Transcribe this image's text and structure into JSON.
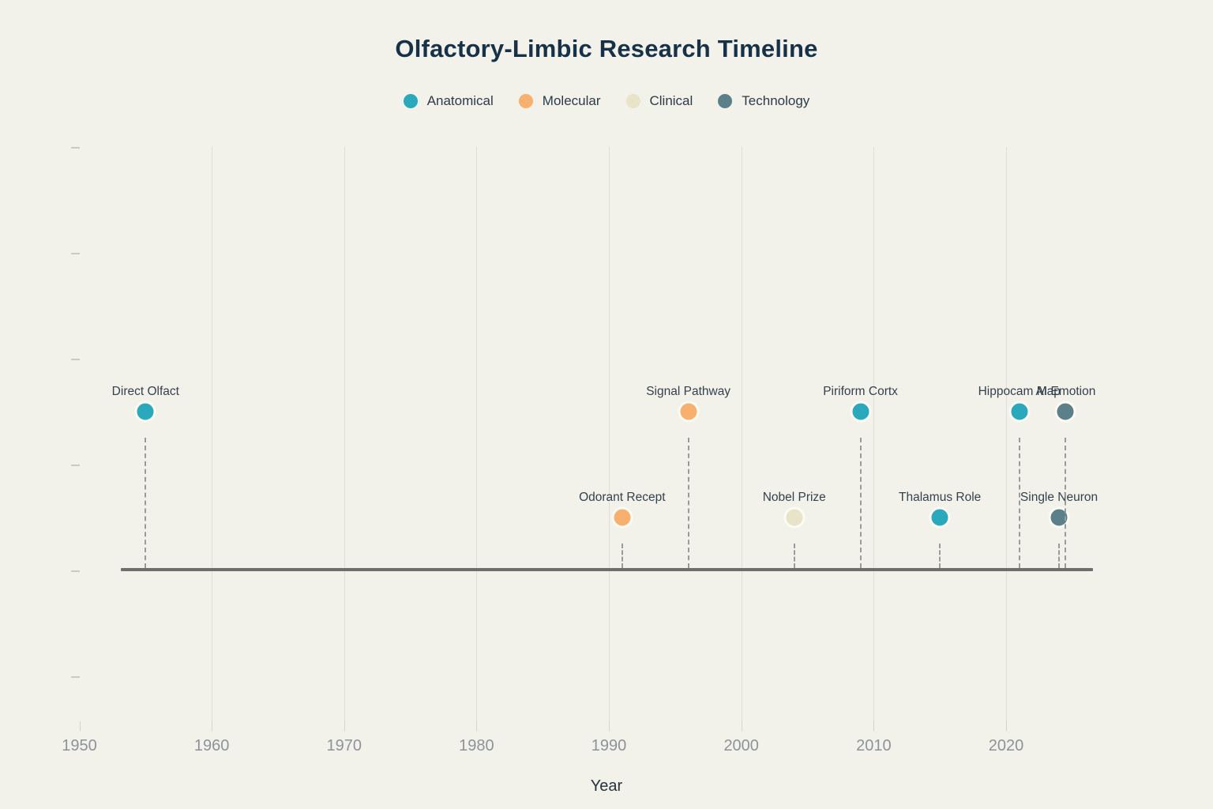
{
  "page": {
    "background_color": "#f2f1ea"
  },
  "chart_data": {
    "type": "scatter",
    "subtype": "event-timeline",
    "title": "Olfactory-Limbic Research Timeline",
    "xlabel": "Year",
    "ylabel": "",
    "x_tick_labels": [
      "1950",
      "1960",
      "1970",
      "1980",
      "1990",
      "2000",
      "2010",
      "2020"
    ],
    "x_tick_years": [
      1950,
      1960,
      1970,
      1980,
      1990,
      2000,
      2010,
      2020
    ],
    "xlim": [
      1950,
      2027
    ],
    "grid": "vertical decade gridlines, no horizontal gridlines, unlabeled y ticks",
    "legend_position": "top-center",
    "legend": [
      {
        "label": "Anatomical",
        "color": "#2aa9bd"
      },
      {
        "label": "Molecular",
        "color": "#f7b06e"
      },
      {
        "label": "Clinical",
        "color": "#e7e4c9"
      },
      {
        "label": "Technology",
        "color": "#5b8089"
      }
    ],
    "baseline_color": "#6e6e6e",
    "points": [
      {
        "label": "Direct Olfact",
        "year": 1955,
        "category": "Anatomical",
        "color": "#2aa9bd",
        "row": "upper"
      },
      {
        "label": "Odorant Recept",
        "year": 1991,
        "category": "Molecular",
        "color": "#f7b06e",
        "row": "lower"
      },
      {
        "label": "Signal Pathway",
        "year": 1996,
        "category": "Molecular",
        "color": "#f7b06e",
        "row": "upper"
      },
      {
        "label": "Nobel Prize",
        "year": 2004,
        "category": "Clinical",
        "color": "#e7e4c9",
        "row": "lower"
      },
      {
        "label": "Piriform Cortx",
        "year": 2009,
        "category": "Anatomical",
        "color": "#2aa9bd",
        "row": "upper"
      },
      {
        "label": "Thalamus Role",
        "year": 2015,
        "category": "Anatomical",
        "color": "#2aa9bd",
        "row": "lower"
      },
      {
        "label": "Hippocam Map",
        "year": 2021,
        "category": "Anatomical",
        "color": "#2aa9bd",
        "row": "upper"
      },
      {
        "label": "Single Neuron",
        "year": 2024,
        "category": "Technology",
        "color": "#5b8089",
        "row": "lower"
      },
      {
        "label": "AI Emotion",
        "year": 2024.5,
        "category": "Technology",
        "color": "#5b8089",
        "row": "upper"
      }
    ]
  }
}
